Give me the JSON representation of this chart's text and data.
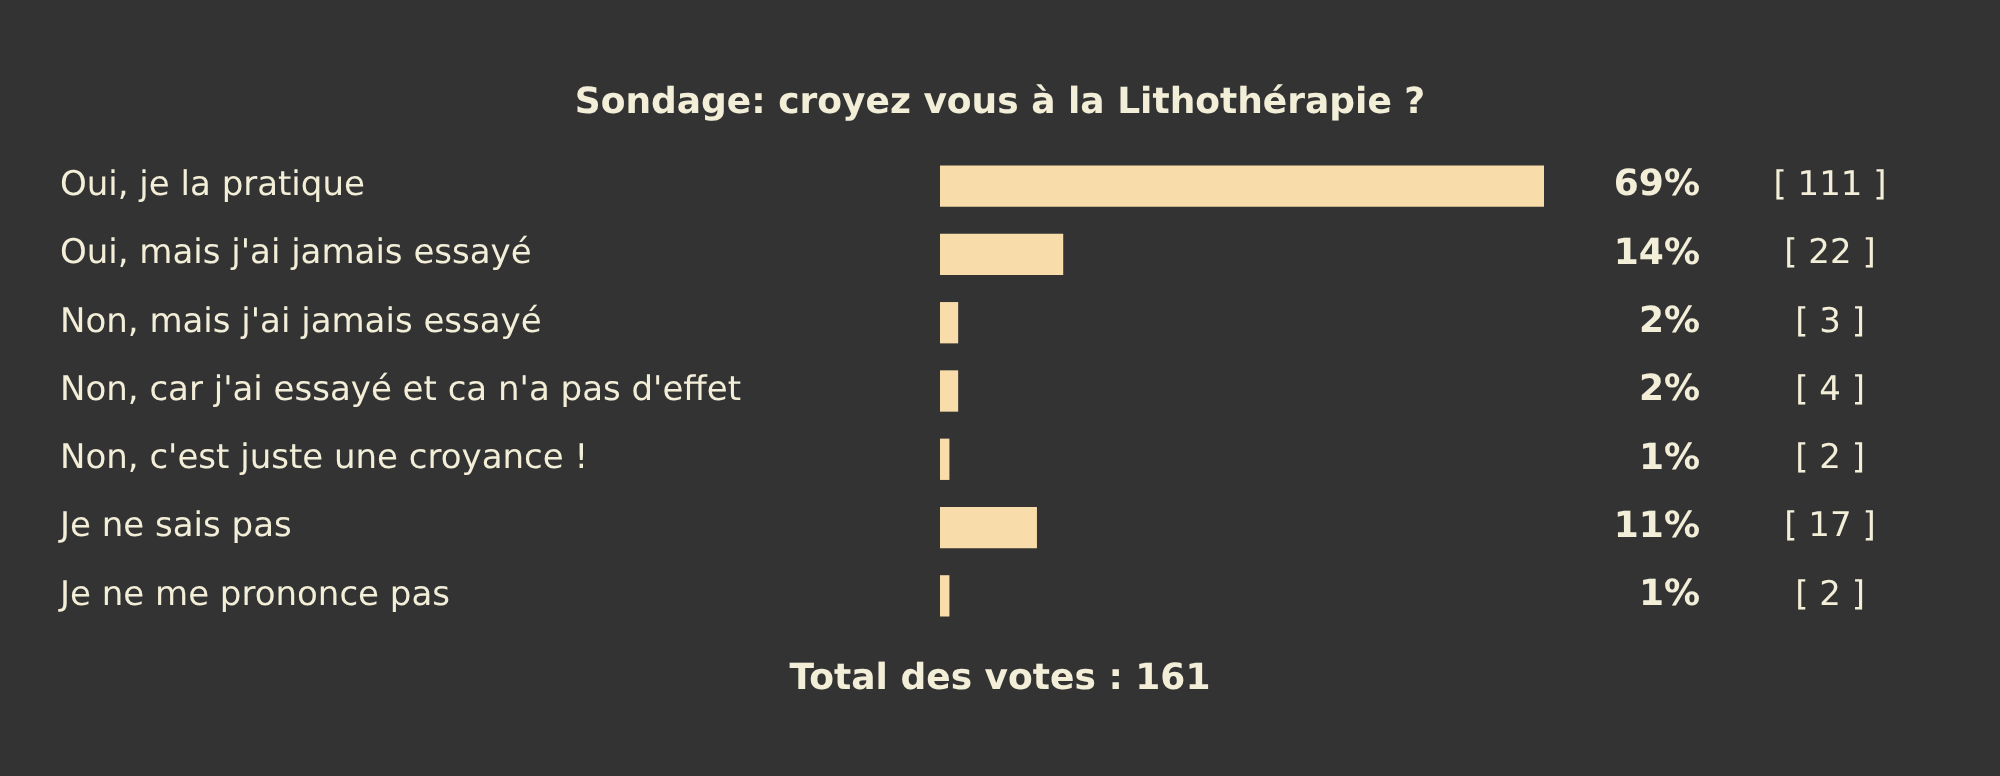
{
  "chart_data": {
    "type": "bar",
    "orientation": "horizontal",
    "title": "Sondage: croyez vous à la Lithothérapie ?",
    "categories": [
      "Oui, je la pratique",
      "Oui, mais j'ai jamais essayé",
      "Non, mais j'ai jamais essayé",
      "Non, car j'ai essayé et ca n'a pas d'effet",
      "Non, c'est juste une croyance !",
      "Je ne sais pas",
      "Je ne me prononce pas"
    ],
    "values": [
      69,
      14,
      2,
      2,
      1,
      11,
      1
    ],
    "value_labels": [
      "69%",
      "14%",
      "2%",
      "2%",
      "1%",
      "11%",
      "1%"
    ],
    "color": "#f8dcaa",
    "xlim": [
      0,
      69
    ],
    "tick_labels": "y",
    "grid": false,
    "legend": false,
    "annotations": [
      "[ 111 ]",
      "[ 22 ]",
      "[ 3 ]",
      "[ 4 ]",
      "[ 2 ]",
      "[ 17 ]",
      "[ 2 ]",
      "Total des votes : 161"
    ]
  }
}
